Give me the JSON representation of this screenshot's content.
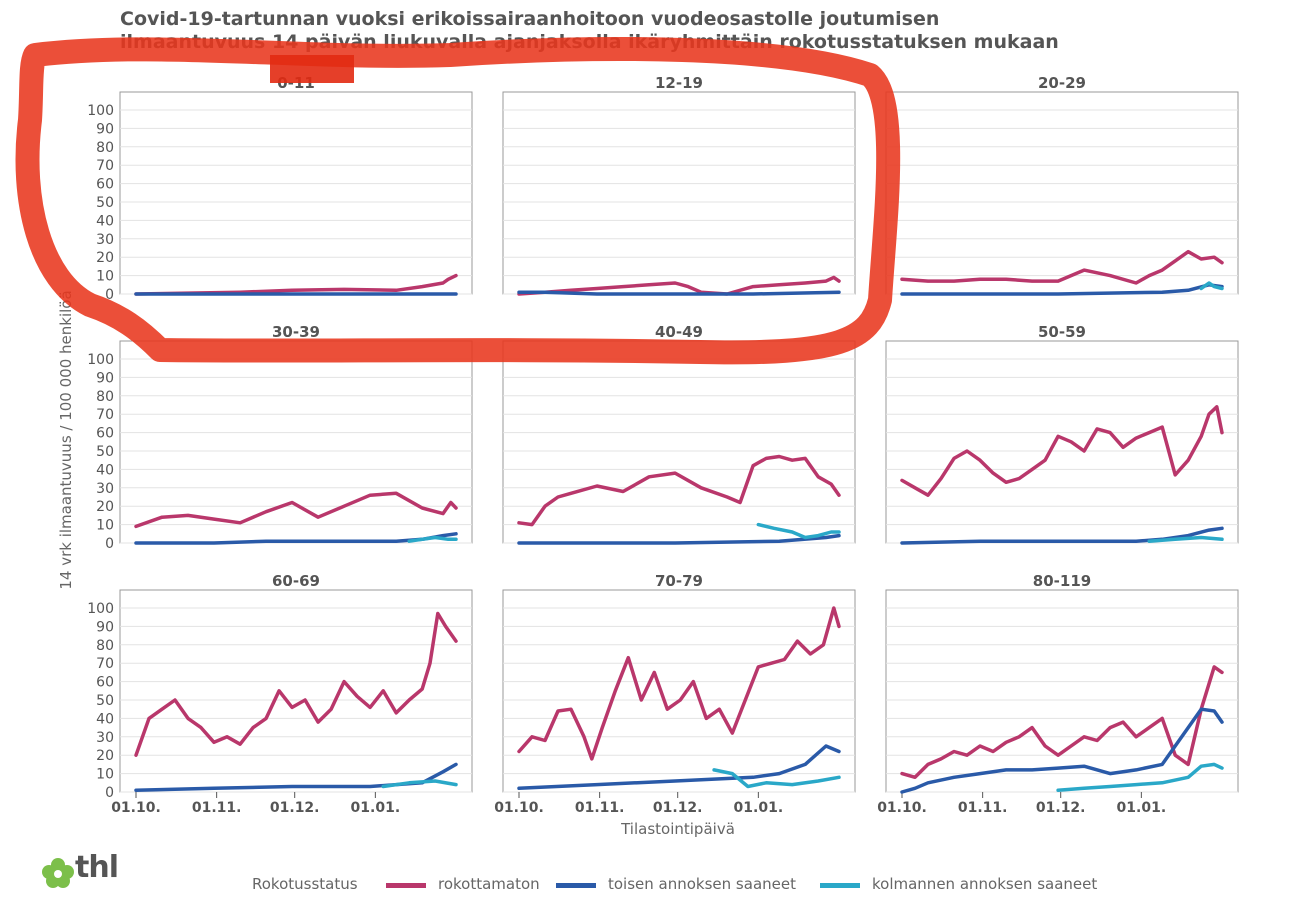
{
  "title_line1": "Covid-19-tartunnan vuoksi erikoissairaanhoitoon vuodeosastolle joutumisen",
  "title_line2": "ilmaantuvuus 14 päivän liukuvalla ajanjaksolla ikäryhmittäin rokotusstatuksen mukaan",
  "legend": {
    "title": "Rokotusstatus",
    "items": [
      {
        "label": "rokottamaton",
        "color": "#b9376b"
      },
      {
        "label": "toisen annoksen saaneet",
        "color": "#2a5aa8"
      },
      {
        "label": "kolmannen annoksen saaneet",
        "color": "#2aa8c8"
      }
    ]
  },
  "logo_text": "thl",
  "annotation": "red hand-drawn loop around panels 0-11, 12-19 and their top area",
  "chart_data": {
    "type": "line",
    "ylabel": "14 vrk ilmaantuvuus / 100 000 henkilöä",
    "xlabel": "Tilastointipäivä",
    "ylim": [
      0,
      100
    ],
    "yticks": [
      "0",
      "10",
      "20",
      "30",
      "40",
      "50",
      "60",
      "70",
      "80",
      "90",
      "100"
    ],
    "xticks": [
      "01.10.",
      "01.11.",
      "01.12.",
      "01.01."
    ],
    "grid": true,
    "panels": [
      {
        "label": "0-11",
        "series": [
          {
            "name": "rokottamaton",
            "x": [
              0,
              20,
              40,
              60,
              80,
              100,
              110,
              118,
              120,
              123
            ],
            "values": [
              0,
              0.5,
              1,
              2,
              2.5,
              2,
              4,
              6,
              8,
              10
            ]
          },
          {
            "name": "toisen annoksen saaneet",
            "x": [
              0,
              123
            ],
            "values": [
              0,
              0
            ]
          }
        ]
      },
      {
        "label": "12-19",
        "series": [
          {
            "name": "rokottamaton",
            "x": [
              0,
              10,
              20,
              30,
              40,
              50,
              60,
              65,
              70,
              80,
              90,
              100,
              110,
              118,
              121,
              123
            ],
            "values": [
              0,
              1,
              2,
              3,
              4,
              5,
              6,
              4,
              1,
              0,
              4,
              5,
              6,
              7,
              9,
              7
            ]
          },
          {
            "name": "toisen annoksen saaneet",
            "x": [
              0,
              10,
              30,
              60,
              90,
              123
            ],
            "values": [
              1,
              1,
              0,
              0,
              0,
              1
            ]
          }
        ]
      },
      {
        "label": "20-29",
        "series": [
          {
            "name": "rokottamaton",
            "x": [
              0,
              10,
              20,
              30,
              40,
              50,
              60,
              70,
              80,
              90,
              95,
              100,
              105,
              110,
              115,
              120,
              123
            ],
            "values": [
              8,
              7,
              7,
              8,
              8,
              7,
              7,
              13,
              10,
              6,
              10,
              13,
              18,
              23,
              19,
              20,
              17
            ]
          },
          {
            "name": "toisen annoksen saaneet",
            "x": [
              0,
              60,
              100,
              110,
              118,
              123
            ],
            "values": [
              0,
              0,
              1,
              2,
              5,
              4
            ]
          },
          {
            "name": "kolmannen annoksen saaneet",
            "x": [
              115,
              118,
              120,
              123
            ],
            "values": [
              3,
              6,
              4,
              3
            ]
          }
        ]
      },
      {
        "label": "30-39",
        "series": [
          {
            "name": "rokottamaton",
            "x": [
              0,
              10,
              20,
              30,
              40,
              50,
              60,
              70,
              80,
              90,
              100,
              110,
              118,
              121,
              123
            ],
            "values": [
              9,
              14,
              15,
              13,
              11,
              17,
              22,
              14,
              20,
              26,
              27,
              19,
              16,
              22,
              19
            ]
          },
          {
            "name": "toisen annoksen saaneet",
            "x": [
              0,
              30,
              50,
              60,
              100,
              110,
              118,
              123
            ],
            "values": [
              0,
              0,
              1,
              1,
              1,
              2,
              4,
              5
            ]
          },
          {
            "name": "kolmannen annoksen saaneet",
            "x": [
              105,
              110,
              115,
              120,
              123
            ],
            "values": [
              1,
              2,
              3,
              2,
              2
            ]
          }
        ]
      },
      {
        "label": "40-49",
        "series": [
          {
            "name": "rokottamaton",
            "x": [
              0,
              5,
              10,
              15,
              20,
              30,
              40,
              50,
              60,
              70,
              80,
              85,
              90,
              95,
              100,
              105,
              110,
              115,
              120,
              123
            ],
            "values": [
              11,
              10,
              20,
              25,
              27,
              31,
              28,
              36,
              38,
              30,
              25,
              22,
              42,
              46,
              47,
              45,
              46,
              36,
              32,
              26
            ]
          },
          {
            "name": "toisen annoksen saaneet",
            "x": [
              0,
              60,
              100,
              118,
              123
            ],
            "values": [
              0,
              0,
              1,
              3,
              4
            ]
          },
          {
            "name": "kolmannen annoksen saaneet",
            "x": [
              92,
              98,
              105,
              110,
              115,
              120,
              123
            ],
            "values": [
              10,
              8,
              6,
              3,
              4,
              6,
              6
            ]
          }
        ]
      },
      {
        "label": "50-59",
        "series": [
          {
            "name": "rokottamaton",
            "x": [
              0,
              5,
              10,
              15,
              20,
              25,
              30,
              35,
              40,
              45,
              50,
              55,
              60,
              65,
              70,
              75,
              80,
              85,
              90,
              95,
              100,
              105,
              110,
              115,
              118,
              121,
              123
            ],
            "values": [
              34,
              30,
              26,
              35,
              46,
              50,
              45,
              38,
              33,
              35,
              40,
              45,
              58,
              55,
              50,
              62,
              60,
              52,
              57,
              60,
              63,
              37,
              45,
              58,
              70,
              74,
              60
            ]
          },
          {
            "name": "toisen annoksen saaneet",
            "x": [
              0,
              30,
              60,
              90,
              100,
              110,
              118,
              123
            ],
            "values": [
              0,
              1,
              1,
              1,
              2,
              4,
              7,
              8
            ]
          },
          {
            "name": "kolmannen annoksen saaneet",
            "x": [
              95,
              105,
              115,
              123
            ],
            "values": [
              1,
              2,
              3,
              2
            ]
          }
        ]
      },
      {
        "label": "60-69",
        "series": [
          {
            "name": "rokottamaton",
            "x": [
              0,
              5,
              10,
              15,
              20,
              25,
              30,
              35,
              40,
              45,
              50,
              55,
              60,
              65,
              70,
              75,
              80,
              85,
              90,
              95,
              100,
              105,
              110,
              113,
              116,
              119,
              123
            ],
            "values": [
              20,
              40,
              45,
              50,
              40,
              35,
              27,
              30,
              26,
              35,
              40,
              55,
              46,
              50,
              38,
              45,
              60,
              52,
              46,
              55,
              43,
              50,
              56,
              70,
              97,
              90,
              82
            ]
          },
          {
            "name": "toisen annoksen saaneet",
            "x": [
              0,
              30,
              60,
              90,
              110,
              118,
              123
            ],
            "values": [
              1,
              2,
              3,
              3,
              5,
              11,
              15
            ]
          },
          {
            "name": "kolmannen annoksen saaneet",
            "x": [
              95,
              105,
              115,
              123
            ],
            "values": [
              3,
              5,
              6,
              4
            ]
          }
        ]
      },
      {
        "label": "70-79",
        "series": [
          {
            "name": "rokottamaton",
            "x": [
              0,
              5,
              10,
              15,
              20,
              25,
              28,
              32,
              37,
              42,
              47,
              52,
              57,
              62,
              67,
              72,
              77,
              82,
              87,
              92,
              97,
              102,
              107,
              112,
              117,
              121,
              123
            ],
            "values": [
              22,
              30,
              28,
              44,
              45,
              30,
              18,
              35,
              55,
              73,
              50,
              65,
              45,
              50,
              60,
              40,
              45,
              32,
              50,
              68,
              70,
              72,
              82,
              75,
              80,
              100,
              90
            ]
          },
          {
            "name": "toisen annoksen saaneet",
            "x": [
              0,
              30,
              60,
              90,
              100,
              110,
              118,
              123
            ],
            "values": [
              2,
              4,
              6,
              8,
              10,
              15,
              25,
              22
            ]
          },
          {
            "name": "kolmannen annoksen saaneet",
            "x": [
              75,
              82,
              88,
              95,
              105,
              115,
              123
            ],
            "values": [
              12,
              10,
              3,
              5,
              4,
              6,
              8
            ]
          }
        ]
      },
      {
        "label": "80-119",
        "series": [
          {
            "name": "rokottamaton",
            "x": [
              0,
              5,
              10,
              15,
              20,
              25,
              30,
              35,
              40,
              45,
              50,
              55,
              60,
              65,
              70,
              75,
              80,
              85,
              90,
              95,
              100,
              105,
              110,
              115,
              120,
              123
            ],
            "values": [
              10,
              8,
              15,
              18,
              22,
              20,
              25,
              22,
              27,
              30,
              35,
              25,
              20,
              25,
              30,
              28,
              35,
              38,
              30,
              35,
              40,
              20,
              15,
              45,
              68,
              65
            ]
          },
          {
            "name": "toisen annoksen saaneet",
            "x": [
              0,
              5,
              10,
              20,
              30,
              40,
              50,
              60,
              70,
              80,
              90,
              100,
              105,
              110,
              115,
              120,
              123
            ],
            "values": [
              0,
              2,
              5,
              8,
              10,
              12,
              12,
              13,
              14,
              10,
              12,
              15,
              25,
              35,
              45,
              44,
              38
            ]
          },
          {
            "name": "kolmannen annoksen saaneet",
            "x": [
              60,
              70,
              80,
              90,
              100,
              110,
              115,
              120,
              123
            ],
            "values": [
              1,
              2,
              3,
              4,
              5,
              8,
              14,
              15,
              13
            ]
          }
        ]
      }
    ]
  }
}
